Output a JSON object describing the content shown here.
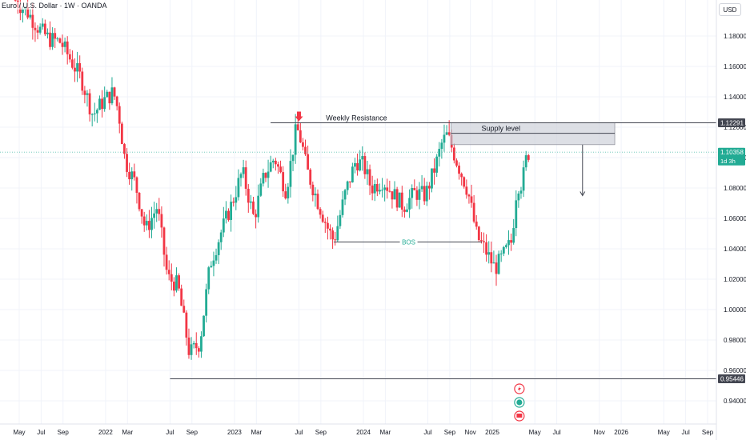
{
  "symbol": {
    "title": "Euro / U.S. Dollar · 1W · OANDA",
    "currency": "USD"
  },
  "colors": {
    "up": "#22ab94",
    "down": "#f23645",
    "grid": "#f0f3fa",
    "axis_text": "#131722",
    "level_line": "#434651",
    "current_price_bg": "#22ab94",
    "supply_zone": "#d1d4dc",
    "marker": "#f23645"
  },
  "chart_data": {
    "type": "candlestick",
    "title": "Euro / U.S. Dollar · 1W · OANDA",
    "y_ticks": [
      "1.18000",
      "1.16000",
      "1.14000",
      "1.12000",
      "1.10000",
      "1.08000",
      "1.06000",
      "1.04000",
      "1.02000",
      "1.00000",
      "0.98000",
      "0.96000",
      "0.94000"
    ],
    "y_tick_values": [
      1.18,
      1.16,
      1.14,
      1.12,
      1.1,
      1.08,
      1.06,
      1.04,
      1.02,
      1.0,
      0.98,
      0.96,
      0.94
    ],
    "ylim": [
      0.932,
      1.2
    ],
    "x_ticks": [
      {
        "label": "May",
        "t": 2021.33
      },
      {
        "label": "Jul",
        "t": 2021.5
      },
      {
        "label": "Sep",
        "t": 2021.67
      },
      {
        "label": "2022",
        "t": 2022.0
      },
      {
        "label": "Mar",
        "t": 2022.17
      },
      {
        "label": "Jul",
        "t": 2022.5
      },
      {
        "label": "Sep",
        "t": 2022.67
      },
      {
        "label": "2023",
        "t": 2023.0
      },
      {
        "label": "Mar",
        "t": 2023.17
      },
      {
        "label": "Jul",
        "t": 2023.5
      },
      {
        "label": "Sep",
        "t": 2023.67
      },
      {
        "label": "2024",
        "t": 2024.0
      },
      {
        "label": "Mar",
        "t": 2024.17
      },
      {
        "label": "Jul",
        "t": 2024.5
      },
      {
        "label": "Sep",
        "t": 2024.67
      },
      {
        "label": "Nov",
        "t": 2024.83
      },
      {
        "label": "2025",
        "t": 2025.0
      },
      {
        "label": "May",
        "t": 2025.33
      },
      {
        "label": "Jul",
        "t": 2025.5
      },
      {
        "label": "Nov",
        "t": 2025.83
      },
      {
        "label": "2026",
        "t": 2026.0
      },
      {
        "label": "May",
        "t": 2026.33
      },
      {
        "label": "Jul",
        "t": 2026.5
      },
      {
        "label": "Sep",
        "t": 2026.67
      }
    ],
    "xlim": [
      2021.33,
      2026.67
    ],
    "price_path": [
      [
        2021.3,
        1.205
      ],
      [
        2021.42,
        1.195
      ],
      [
        2021.5,
        1.185
      ],
      [
        2021.58,
        1.178
      ],
      [
        2021.67,
        1.176
      ],
      [
        2021.83,
        1.152
      ],
      [
        2021.92,
        1.128
      ],
      [
        2022.0,
        1.137
      ],
      [
        2022.08,
        1.143
      ],
      [
        2022.12,
        1.13
      ],
      [
        2022.17,
        1.098
      ],
      [
        2022.25,
        1.083
      ],
      [
        2022.33,
        1.052
      ],
      [
        2022.42,
        1.068
      ],
      [
        2022.5,
        1.021
      ],
      [
        2022.58,
        1.016
      ],
      [
        2022.67,
        0.971
      ],
      [
        2022.75,
        0.978
      ],
      [
        2022.83,
        1.03
      ],
      [
        2022.92,
        1.052
      ],
      [
        2023.0,
        1.07
      ],
      [
        2023.08,
        1.091
      ],
      [
        2023.17,
        1.06
      ],
      [
        2023.25,
        1.088
      ],
      [
        2023.33,
        1.1
      ],
      [
        2023.42,
        1.078
      ],
      [
        2023.5,
        1.12
      ],
      [
        2023.54,
        1.11
      ],
      [
        2023.58,
        1.092
      ],
      [
        2023.67,
        1.07
      ],
      [
        2023.75,
        1.052
      ],
      [
        2023.79,
        1.045
      ],
      [
        2023.88,
        1.077
      ],
      [
        2023.96,
        1.098
      ],
      [
        2024.02,
        1.095
      ],
      [
        2024.08,
        1.08
      ],
      [
        2024.17,
        1.085
      ],
      [
        2024.25,
        1.076
      ],
      [
        2024.33,
        1.068
      ],
      [
        2024.42,
        1.077
      ],
      [
        2024.5,
        1.075
      ],
      [
        2024.58,
        1.095
      ],
      [
        2024.63,
        1.11
      ],
      [
        2024.67,
        1.115
      ],
      [
        2024.75,
        1.096
      ],
      [
        2024.83,
        1.078
      ],
      [
        2024.9,
        1.048
      ],
      [
        2024.96,
        1.04
      ],
      [
        2025.04,
        1.027
      ],
      [
        2025.1,
        1.035
      ],
      [
        2025.17,
        1.045
      ],
      [
        2025.21,
        1.082
      ],
      [
        2025.25,
        1.083
      ],
      [
        2025.29,
        1.103
      ]
    ],
    "levels": {
      "weekly_resistance": {
        "label": "Weekly Resistance",
        "value": 1.1229,
        "tag": "1.12291"
      },
      "support_low": {
        "value": 0.95446,
        "tag": "0.95446"
      },
      "current_price": {
        "value": 1.10358,
        "tag": "1.10358",
        "countdown": "1d 3h"
      },
      "supply_zone": {
        "label": "Supply level",
        "top": 1.1229,
        "bottom": 1.1085
      },
      "bos": {
        "label": "BOS",
        "value": 1.0445
      }
    }
  },
  "event_icons": [
    "lightning-icon",
    "earnings-icon",
    "flag-icon"
  ]
}
